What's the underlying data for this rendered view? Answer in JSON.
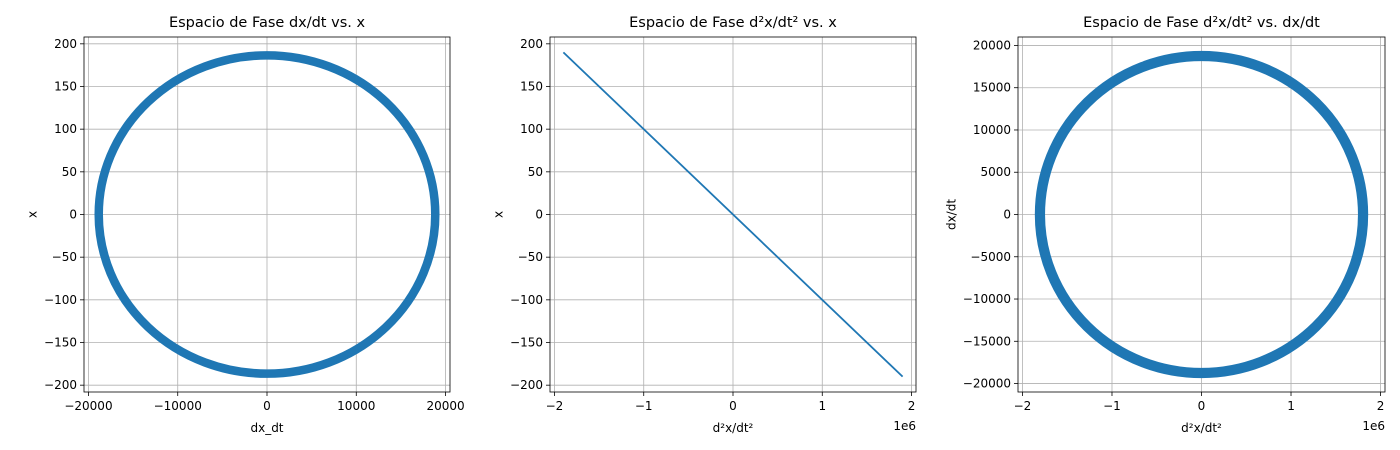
{
  "chart_data": [
    {
      "type": "line",
      "title": "Espacio de Fase dx/dt vs. x",
      "xlabel": "dx_dt",
      "ylabel": "x",
      "xlim": [
        -20500,
        20500
      ],
      "ylim": [
        -208,
        208
      ],
      "xticks": [
        -20000,
        -10000,
        0,
        10000,
        20000
      ],
      "xtick_labels": [
        "−20000",
        "−10000",
        "0",
        "10000",
        "20000"
      ],
      "yticks": [
        -200,
        -150,
        -100,
        -50,
        0,
        50,
        100,
        150,
        200
      ],
      "ytick_labels": [
        "−200",
        "−150",
        "−100",
        "−50",
        "0",
        "50",
        "100",
        "150",
        "200"
      ],
      "x_offset_label": "",
      "grid": true,
      "color": "#1f77b4",
      "series": [
        {
          "shape": "ellipse-band",
          "center": [
            0,
            0
          ],
          "rx": [
            18400,
            19300
          ],
          "ry": [
            183,
            190
          ]
        }
      ]
    },
    {
      "type": "line",
      "title": "Espacio de Fase d²x/dt² vs. x",
      "xlabel": "d²x/dt²",
      "ylabel": "x",
      "xlim": [
        -2.05,
        2.05
      ],
      "ylim": [
        -208,
        208
      ],
      "xticks": [
        -2,
        -1,
        0,
        1,
        2
      ],
      "xtick_labels": [
        "−2",
        "−1",
        "0",
        "1",
        "2"
      ],
      "yticks": [
        -200,
        -150,
        -100,
        -50,
        0,
        50,
        100,
        150,
        200
      ],
      "ytick_labels": [
        "−200",
        "−150",
        "−100",
        "−50",
        "0",
        "50",
        "100",
        "150",
        "200"
      ],
      "x_offset_label": "1e6",
      "grid": true,
      "color": "#1f77b4",
      "series": [
        {
          "shape": "line",
          "x": [
            -1.9,
            1.9
          ],
          "y": [
            190,
            -190
          ]
        }
      ]
    },
    {
      "type": "line",
      "title": "Espacio de Fase d²x/dt² vs. dx/dt",
      "xlabel": "d²x/dt²",
      "ylabel": "dx/dt",
      "xlim": [
        -2.05,
        2.05
      ],
      "ylim": [
        -21000,
        21000
      ],
      "xticks": [
        -2,
        -1,
        0,
        1,
        2
      ],
      "xtick_labels": [
        "−2",
        "−1",
        "0",
        "1",
        "2"
      ],
      "yticks": [
        -20000,
        -15000,
        -10000,
        -5000,
        0,
        5000,
        10000,
        15000,
        20000
      ],
      "ytick_labels": [
        "−20000",
        "−15000",
        "−10000",
        "−5000",
        "0",
        "5000",
        "10000",
        "15000",
        "20000"
      ],
      "x_offset_label": "1e6",
      "grid": true,
      "color": "#1f77b4",
      "series": [
        {
          "shape": "ellipse-band",
          "center": [
            0,
            0
          ],
          "rx": [
            1.75,
            1.86
          ],
          "ry": [
            18300,
            19200
          ]
        }
      ]
    }
  ]
}
